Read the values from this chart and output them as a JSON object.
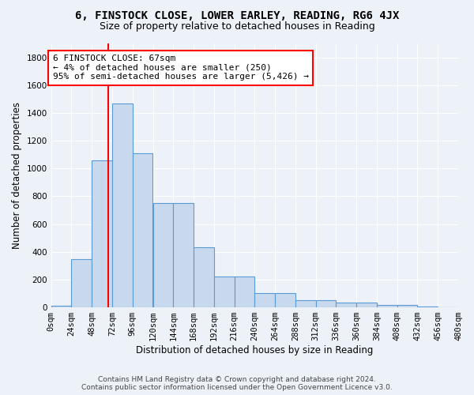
{
  "title": "6, FINSTOCK CLOSE, LOWER EARLEY, READING, RG6 4JX",
  "subtitle": "Size of property relative to detached houses in Reading",
  "xlabel": "Distribution of detached houses by size in Reading",
  "ylabel": "Number of detached properties",
  "footer_line1": "Contains HM Land Registry data © Crown copyright and database right 2024.",
  "footer_line2": "Contains public sector information licensed under the Open Government Licence v3.0.",
  "bar_values": [
    10,
    350,
    1060,
    1470,
    1110,
    750,
    750,
    430,
    220,
    220,
    105,
    105,
    50,
    50,
    35,
    35,
    20,
    15,
    5,
    0
  ],
  "bin_edges": [
    0,
    24,
    48,
    72,
    96,
    120,
    144,
    168,
    192,
    216,
    240,
    264,
    288,
    312,
    336,
    360,
    384,
    408,
    432,
    456,
    480
  ],
  "bar_labels": [
    "0sqm",
    "24sqm",
    "48sqm",
    "72sqm",
    "96sqm",
    "120sqm",
    "144sqm",
    "168sqm",
    "192sqm",
    "216sqm",
    "240sqm",
    "264sqm",
    "288sqm",
    "312sqm",
    "336sqm",
    "360sqm",
    "384sqm",
    "408sqm",
    "432sqm",
    "456sqm",
    "480sqm"
  ],
  "bar_color": "#c9d9ed",
  "bar_edge_color": "#5b9bd5",
  "annotation_text": "6 FINSTOCK CLOSE: 67sqm\n← 4% of detached houses are smaller (250)\n95% of semi-detached houses are larger (5,426) →",
  "annotation_box_color": "white",
  "annotation_box_edge_color": "red",
  "vline_x": 67,
  "vline_color": "red",
  "ylim": [
    0,
    1900
  ],
  "yticks": [
    0,
    200,
    400,
    600,
    800,
    1000,
    1200,
    1400,
    1600,
    1800
  ],
  "bg_color": "#edf2f9",
  "plot_bg_color": "#edf2f9",
  "title_fontsize": 10,
  "subtitle_fontsize": 9,
  "axis_label_fontsize": 8.5,
  "tick_fontsize": 7.5,
  "annotation_fontsize": 8,
  "footer_fontsize": 6.5
}
